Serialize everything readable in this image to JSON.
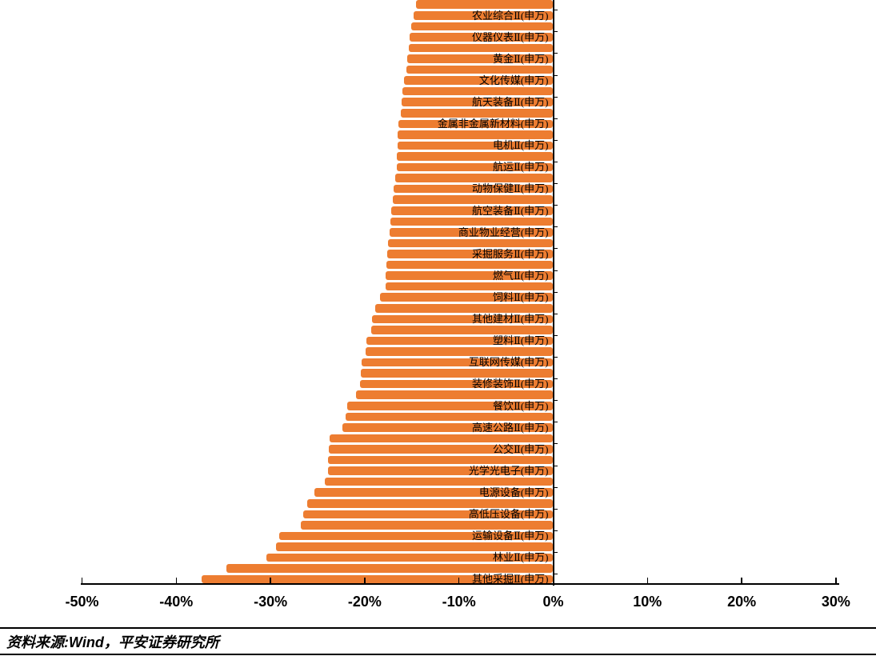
{
  "chart_data": {
    "type": "bar",
    "orientation": "horizontal",
    "title": "",
    "xlabel": "",
    "ylabel": "",
    "xlim": [
      -50,
      30
    ],
    "grid": false,
    "bar_color": "#ed7d31",
    "note": "horizontal bar chart of sector returns, category labels shown on every other bar",
    "x_ticks": [
      {
        "label": "-50%",
        "value": -50
      },
      {
        "label": "-40%",
        "value": -40
      },
      {
        "label": "-30%",
        "value": -30
      },
      {
        "label": "-20%",
        "value": -20
      },
      {
        "label": "-10%",
        "value": -10
      },
      {
        "label": "0%",
        "value": 0
      },
      {
        "label": "10%",
        "value": 10
      },
      {
        "label": "20%",
        "value": 20
      },
      {
        "label": "30%",
        "value": 30
      }
    ],
    "bars": [
      {
        "label": "",
        "value": -14.6
      },
      {
        "label": "农业综合Ⅱ(申万)",
        "value": -14.8
      },
      {
        "label": "",
        "value": -15.1
      },
      {
        "label": "仪器仪表Ⅱ(申万)",
        "value": -15.2
      },
      {
        "label": "",
        "value": -15.3
      },
      {
        "label": "黄金Ⅱ(申万)",
        "value": -15.5
      },
      {
        "label": "",
        "value": -15.6
      },
      {
        "label": "文化传媒(申万)",
        "value": -15.8
      },
      {
        "label": "",
        "value": -16.0
      },
      {
        "label": "航天装备Ⅱ(申万)",
        "value": -16.1
      },
      {
        "label": "",
        "value": -16.2
      },
      {
        "label": "金属非金属新材料(申万)",
        "value": -16.4
      },
      {
        "label": "",
        "value": -16.5
      },
      {
        "label": "电机Ⅱ(申万)",
        "value": -16.5
      },
      {
        "label": "",
        "value": -16.6
      },
      {
        "label": "航运Ⅱ(申万)",
        "value": -16.6
      },
      {
        "label": "",
        "value": -16.8
      },
      {
        "label": "动物保健Ⅱ(申万)",
        "value": -16.9
      },
      {
        "label": "",
        "value": -17.0
      },
      {
        "label": "航空装备Ⅱ(申万)",
        "value": -17.2
      },
      {
        "label": "",
        "value": -17.3
      },
      {
        "label": "商业物业经营(申万)",
        "value": -17.4
      },
      {
        "label": "",
        "value": -17.5
      },
      {
        "label": "采掘服务Ⅱ(申万)",
        "value": -17.6
      },
      {
        "label": "",
        "value": -17.7
      },
      {
        "label": "燃气Ⅱ(申万)",
        "value": -17.8
      },
      {
        "label": "",
        "value": -17.8
      },
      {
        "label": "饲料Ⅱ(申万)",
        "value": -18.4
      },
      {
        "label": "",
        "value": -18.9
      },
      {
        "label": "其他建材Ⅱ(申万)",
        "value": -19.2
      },
      {
        "label": "",
        "value": -19.3
      },
      {
        "label": "塑料Ⅱ(申万)",
        "value": -19.8
      },
      {
        "label": "",
        "value": -19.9
      },
      {
        "label": "互联网传媒(申万)",
        "value": -20.3
      },
      {
        "label": "",
        "value": -20.4
      },
      {
        "label": "装修装饰Ⅱ(申万)",
        "value": -20.5
      },
      {
        "label": "",
        "value": -20.9
      },
      {
        "label": "餐饮Ⅱ(申万)",
        "value": -21.9
      },
      {
        "label": "",
        "value": -22.0
      },
      {
        "label": "高速公路Ⅱ(申万)",
        "value": -22.4
      },
      {
        "label": "",
        "value": -23.7
      },
      {
        "label": "公交Ⅱ(申万)",
        "value": -23.8
      },
      {
        "label": "",
        "value": -23.9
      },
      {
        "label": "光学光电子(申万)",
        "value": -23.9
      },
      {
        "label": "",
        "value": -24.2
      },
      {
        "label": "电源设备(申万)",
        "value": -25.3
      },
      {
        "label": "",
        "value": -26.1
      },
      {
        "label": "高低压设备(申万)",
        "value": -26.5
      },
      {
        "label": "",
        "value": -26.8
      },
      {
        "label": "运输设备Ⅱ(申万)",
        "value": -29.1
      },
      {
        "label": "",
        "value": -29.4
      },
      {
        "label": "林业Ⅱ(申万)",
        "value": -30.4
      },
      {
        "label": "",
        "value": -34.7
      },
      {
        "label": "其他采掘Ⅱ(申万)",
        "value": -37.3
      }
    ]
  },
  "footer": {
    "source": "资料来源:Wind，平安证券研究所"
  }
}
